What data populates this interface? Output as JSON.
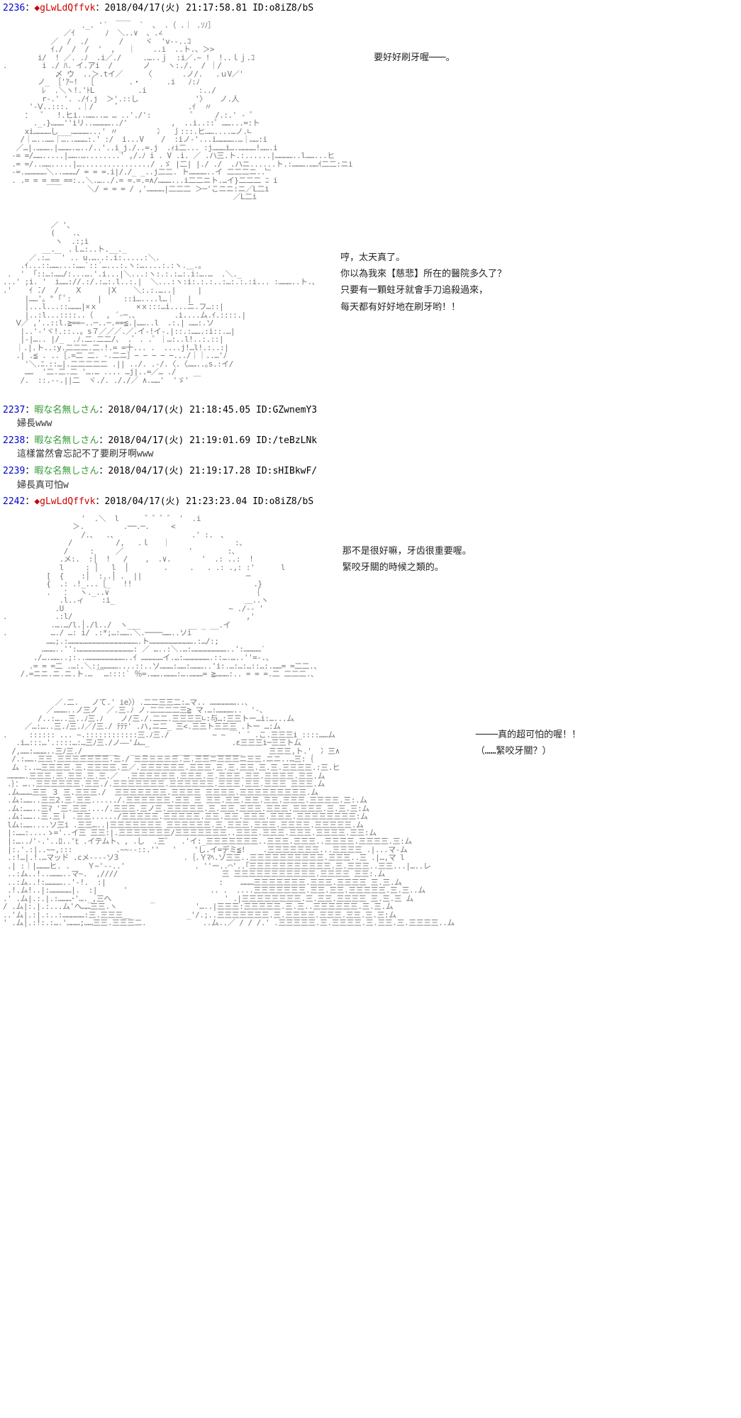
{
  "posts": [
    {
      "num": "2236",
      "trip": "◆gLwLdQffvk",
      "trip_class": "op",
      "date": "2018/04/17(火) 21:17:58.81",
      "id": "ID:o8iZ8/bS",
      "body": "",
      "aa_blocks": [
        {
          "art": "                  ._. '´  ￣￣  `  、 .（ .｜ .ｿﾉ］\n              ／ｲ       ﾉ  ＼..∨  、.∠\n           ／  /  ./       /     ヾ  'v‐-..ｺ\n           ｲ./  /  /  '  ,   ｜    ..i  ..ト.、＞>\n        i/  ! ／. .ﾉ  .i／./     .…..ｊ  :i／.~ !  !..ｌｊ.ｺ\n.        i ./ ﾊ. イ.アi  /       ノ    ヽ:./.  / ｜/\n            〆 ウ  ..＞.tイ／     〈       .ノ/.   .ｕV／'\n        ノ_ ［'ｱ~!  ［        .・      .i   ﾉ:ﾉ\n         ﾚ  .＼ヽ!.'ﾄL          .i            :../\n         r-.' '. ./ｲ.j  ＞'.::し             '〉   ノ.人\n      '‐Ⅴ..:::.  .｜/     ゜               .ｲ  〃\n     ：  ゜  !.ヒi..……..… … ..'./':         ゜    /.:.' - ゜\n       ._.}………''iリ..…………../'          ,  ..i..::゜……...=:ト\n     xi…………し___…………...' 〃         冫  亅:::.ヒ……....…ノ.∟\n    /｜…..……｜…..………:.' :/  i...V    /  :iノ-'...i………….…｜……:i\n   ／…|.……….|……….…../..'..i_j./..=.j  .ｨi二... :j………i….…………!…….i\n  -= =/…….....|…….…........' ,/.ﾉ i . V .i. ／ .ハ三.ト.:......|…………..l……...ヒ\n  .= =/..…….....|…................/ .ゞ |二| |./ ./  .ハニ......ト.:……….……ｲ二二:ニi\n  -=.……………＼..………/ = = =.i|/./_ _..j二二. ト…………..イ 二二二ニ..﹂\n  . .= = = == ==:..＼.…../.= =.=.=∧/………...i二二ニト.…イ}二二二 ﾆ i\n          ￣￣      ＼/ = = = / ,'…………|二二二 ＞─'こニニ:ニ／L二i\n                                                     ／L二i",
          "dialogue": "要好好刷牙喔───。"
        },
        {
          "art": "           ／ '、\n           (    .、\n            ヽ  .:;i\n         __.   .ｌ…:..ト.__._\n      ／.:… ￣' .. u.…..:.i:.....:＼.\n    .ｲ...::……...:……`::´…...:.ヽ:…....:.:ヽ.＿.。\n .  '  ｢::…:……/:...….'.i...|＼...:ヽ:.:.:…:.i:….…  .＼._\n...' ;i. '  i……://.:/.:…:.l..:.|  ＼...:ヽ:i:.:.:..:…:.:.:i... :………..ト.、\n.'    ｲ ̄./  /    Ⅹ      |Ⅹ    ＼:.:.…..|     |\n     |……'。° ｢ ﾟ:      |     ::i…....l…｜   |\n     |...l...::………|×ｘ         ×ｘ:::…i....ニ.フ…::|\n     |..:l...::::..（   , ´-─.、        .i....ム.ｲ.::::.|\n   Ⅴ／ ,'..::l.≧==~..─..─.==≦.|……..l  .:.| ……:.ソ\n    |..'-'ヾ!.::..。s７／／／.／.イ-!イ-.|::.:…….:i::.…|\n    |-|….. |/_  .ﾉ.二.二二/、 .゜. .゜｜…:..l!..:.::|\n   ｜.|.ト..:y.二二二.二.!.= =十... .  ....j!…l!.:..:|\n   .| .≦ . ..［.=二 二. -.二ニ］− − − − −.../｜｜..…'ﾉ\n     '＼.ﾆ.::…|.二二二二二 .|| ../. .-/.〈.〈……..｡s.:イ/\n     ……  '二.二.二 '….… .... …j|..=／… ./\n    /.  ::.--.||二  ヾ./. ././／ ∧.……'  'ゞ' ￣",
          "dialogue": "哼，太天真了。\n你以為我來【慈悲】所在的醫院多久了？\n只要有一顆蛀牙就會手刀追殺過來，\n每天都有好好地在刷牙哟！！"
        }
      ]
    },
    {
      "num": "2237",
      "trip": "暇な名無しさん",
      "trip_class": "anon",
      "date": "2018/04/17(火) 21:18:45.05",
      "id": "ID:GZwnemY3",
      "body": "婦長www",
      "aa_blocks": []
    },
    {
      "num": "2238",
      "trip": "暇な名無しさん",
      "trip_class": "anon",
      "date": "2018/04/17(火) 21:19:01.69",
      "id": "ID:/teBzLNk",
      "body": "這樣當然會忘記不了要刷牙啊www",
      "aa_blocks": []
    },
    {
      "num": "2239",
      "trip": "暇な名無しさん",
      "trip_class": "anon",
      "date": "2018/04/17(火) 21:19:17.28",
      "id": "ID:sHIBkwF/",
      "body": "婦長真可怕w",
      "aa_blocks": []
    },
    {
      "num": "2242",
      "trip": "◆gLwLdQffvk",
      "trip_class": "op",
      "date": "2018/04/17(火) 21:23:23.04",
      "id": "ID:o8iZ8/bS",
      "body": "",
      "aa_blocks": [
        {
          "art": "                  '  .＼  l      ゛゛゛゛ '  .i\n                ＞.         .──.─.     <\n                  /.、  .、                 .' :.　、\n               /          /,   .ｌ   ｜               :、\n              /     :     ／               '        :、\n             .メ:.  :│  !   /    ,  .∨.       '  .: ..:  !\n             l     : │   l  │        .     .   . .: .,: :'      l\n          [  {    :│  :..│ .  ||                        ─\n          {  .: .!_...［_   !!                            .}\n          .   ：  ヽ._..∨                                 ｛\n             .l..ィ    :i_                              ＿..ヽ\n            .U                                      ~ ./-- '\n.           .:l/                                        ,'\n           .….…/l.│./l../  ヽ___           __ _ __.イ\n.          …./ …: i/ .:*;…:…….＼.────……..ソi\n          ……;.:………………………………………….ト………………………….:…/:;\n         ………..'':…………………………………: ／ …..:＼.…:……………………..':…………′\n       ./….……..;:..………………………..ｲ ……………イ.…:……………….::….…..''=-.、\n      .= = =二 .…:.＼::…………....::..ソ………:……:………..'i:.…:…:…::…:.……= =二二.、\n    /.=ニニ.ニ.ニ.ト.… ￣…::::` ％=.…….………:….………= ≧………:.. = = =.二 二二二.、",
          "dialogue": "那不是很好嘛，牙齿很重要喔。\n緊咬牙關的時候之類的。"
        },
        {
          "art": "            ／.二.   ノて.' ie〉）.二二三三二:…マ.. ………………..、\n          ／………..ノ三ノ  ／.三.ﾉ ノ.二二二二三≧ マ.…:…………..  '-、\n        /..:…..三..ﾉ三.ﾉ    ノ/三./.二二.三三三三∟:与…:三三トー…i:…...ム\n     ／…:…..三.ﾉ三.ﾉ／/三./ ﾃﾃﾃ' .ハ,ニ二_ 三<.三三ト三三三 .トー …:ム\n.     :::::: ... ~.::::::::::::三.ﾉ三./          ~ ~ ￣' ̄  .こ.三三三i_::::……ム\n   .i…:::…'.::::…:…三ﾉ三./ノ––'ム…_                   .ε三三三i─三三トム\n  /,……:………..三ﾉ三./________   _  _      ________________      三三三,ト.'  冫三∧\n  /.:…….三三.三三三三三三三.三./ 三三三三三三.三.三三ニ三三三ニ三三.ニニ..…三:｛\n  ム :..…三三三三.三.三三三三.三／.三三三三三三.三三三.三.三.三三.三.三.三三三三.:三.ヒ\n ………….三三三.三.三三.三.三.／  .三三三三三三.三三三.三.三三三.三三.三三三三.三三.ム\n .｝：…..三三三三三三.三三./.三三三三三三三.三三三三三三.三三三.三三.三三三 三三三.ム\n .ム………三三 ３ 三.三三三./  三三三三三三三.三三三三 三三三三.三三三三三三三三三.ム \n .ム:……..三三2.三.三三....../.三三三三三三.三三 三 三三.三三.三三.三三.三三三.三三三三.三:.ム\n .ム:……..三ﾏ '三.三三..../.三三三.三ノ三.三三三三三.三.三三.三三三.三三三.三三三三.三.三.三:ム \n .ム:……..三.三ｉ .三三....../三三三三三.三三三三三.三三.三三.三三三.三三三.三三三三三三三三:ム \n lム:……....ソ三i .三三…..|三三三三三三三 三三三三三三.三.三三三.三三三.三三三三.三三三三三.ム\n |:……:....ゝ='..イ三 三三:|.三三三三三三三/三三三三三三三..三三三.三三三.三三三.三三三三.三三:ム\n |:…..ﾉ'-.'..ﾛ..'ﾋ .イテムト、, .し  .三゛  .'イ:_三三三三三三三..三三三.三三三..三三三三.三三三三.三:ム\n |:.'.:|..~~,:::          .~~--::.''   '    'し.イ=デミ≦!    .三三三三三三三...三三三三 .|...マ-ム\n .:!…|.!.…マッド .cメ----ソ3               .｛.Ｙﾏﾍ.ゾ三三..三三三三三三三三三三.三三三..三 .|…,マ l\n .| :｜|………ヒ. .    Ｙ~'--..'                . ''ー..⌒'..｢三三三三三三三三三三三.三.三三三..三三...|…..レ\n ..:ム..!..………..マ~.  ,////                        三 三三三三三三三三三三三.三三三三 三三:.ム\n ..:ム..!:…………..'-!.  :|                          :    ………三三三三三三三.三三三.三三三三 三.三.ム\n .!.ム!..|:……………|.  :|      '                   .. .  ....三三三三三三三.三三.三三.三三三三三.三.三..ム\n.' .ム|.:.|.:………･'…._,三へ         _                ' .|三三三三三三三三.三.三三.三三三三 三.三.三 ム\n/ .ム|:.|.:...ム'へ……三三.ヽ                  '…..|三三三:三三三三三.三.三..三三三三三三.三.三.ム\n..'ム|.:|.:..:……………:三.三三三＿             _'/.;..三三三三三三三.三.三三三三.三三三.三三.三.三:ム\n' .ム|.:!:.:….'………;……三三.三三三二.             ..ム..／ / / /.' .三三三三三.三.三三三三.三.三三.三.三三三三..ム",
          "dialogue": "────真的超可怕的喔！！\n（……緊咬牙關？）"
        }
      ]
    }
  ],
  "separator": "："
}
